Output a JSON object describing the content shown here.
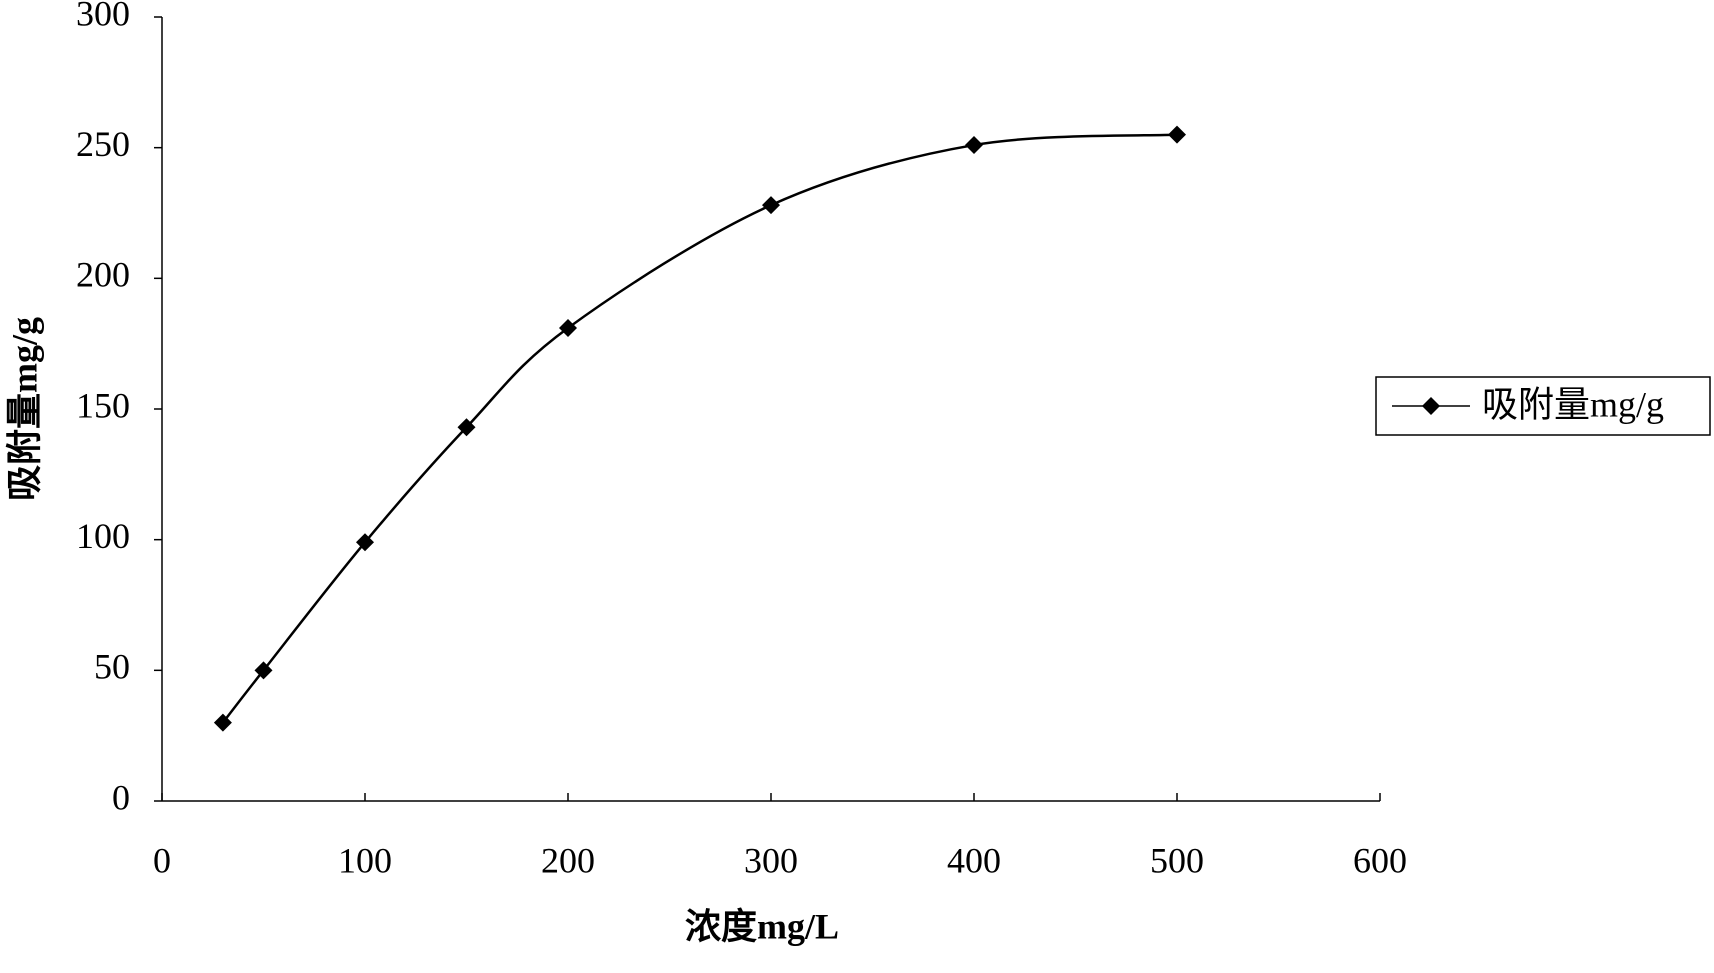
{
  "chart_data": {
    "type": "line",
    "x_label": "浓度mg/L",
    "y_label": "吸附量mg/g",
    "x": [
      30,
      50,
      100,
      150,
      200,
      300,
      400,
      500
    ],
    "series": [
      {
        "name": "吸附量mg/g",
        "color": "#000000",
        "values": [
          30,
          50,
          99,
          143,
          181,
          228,
          251,
          255
        ]
      }
    ],
    "xlim": [
      0,
      600
    ],
    "xticks": [
      0,
      100,
      200,
      300,
      400,
      500,
      600
    ],
    "ylim": [
      0,
      300
    ],
    "yticks": [
      0,
      50,
      100,
      150,
      200,
      250,
      300
    ],
    "grid": false,
    "legend": "right"
  }
}
